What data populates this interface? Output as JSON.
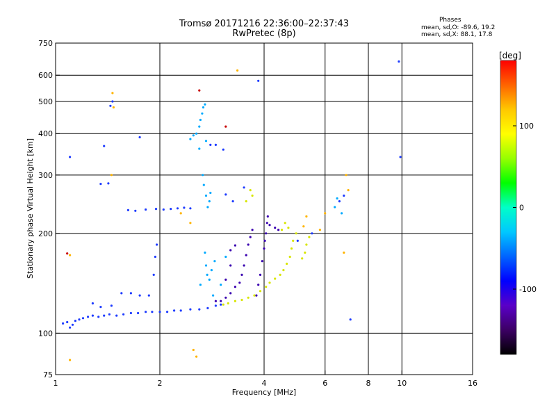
{
  "chart_data": {
    "type": "scatter",
    "title": "Tromsø 20171216 22:36:00–22:37:43",
    "subtitle": "RwPretec (8p)",
    "xlabel": "Frequency [MHz]",
    "ylabel": "Stationary phase Virtual Height [km]",
    "x_scale": "log",
    "y_scale": "log",
    "xlim": [
      1,
      16
    ],
    "ylim": [
      75,
      750
    ],
    "x_ticks": [
      1,
      2,
      4,
      6,
      8,
      10,
      16
    ],
    "y_ticks": [
      75,
      100,
      200,
      300,
      400,
      500,
      600,
      750
    ],
    "x_gridlines": [
      2,
      4,
      6,
      8,
      10
    ],
    "y_gridlines": [
      100,
      200,
      300,
      400,
      500,
      600
    ],
    "grid": true,
    "colorbar": {
      "label": "[deg]",
      "range": [
        -180,
        180
      ],
      "ticks": [
        100,
        0,
        -100
      ],
      "colors": [
        "#000000",
        "#3c0064",
        "#5a00c8",
        "#0000ff",
        "#0064ff",
        "#00c8ff",
        "#00ffc8",
        "#00ff00",
        "#96ff00",
        "#ffff00",
        "#ffc800",
        "#ff6400",
        "#ff0000"
      ]
    },
    "phases_header": "Phases",
    "stats": {
      "O": "mean, sd,O: -89.6, 19.2",
      "X": "mean, sd,X:  88.1, 17.8"
    },
    "series": [
      {
        "color": "#1e3cff",
        "points": [
          [
            1.05,
            107
          ],
          [
            1.08,
            108
          ],
          [
            1.1,
            104
          ],
          [
            1.12,
            106
          ],
          [
            1.14,
            109
          ],
          [
            1.17,
            110
          ],
          [
            1.2,
            111
          ],
          [
            1.24,
            112
          ],
          [
            1.28,
            113
          ],
          [
            1.33,
            112
          ],
          [
            1.38,
            113
          ],
          [
            1.43,
            114
          ],
          [
            1.5,
            113
          ],
          [
            1.57,
            114
          ],
          [
            1.65,
            115
          ],
          [
            1.73,
            115
          ],
          [
            1.82,
            116
          ],
          [
            1.9,
            116
          ],
          [
            2.0,
            116
          ],
          [
            2.1,
            116
          ],
          [
            2.2,
            117
          ],
          [
            2.3,
            117
          ],
          [
            2.45,
            118
          ],
          [
            2.6,
            118
          ],
          [
            2.75,
            119
          ],
          [
            2.9,
            121
          ],
          [
            3.0,
            122
          ],
          [
            1.28,
            123
          ],
          [
            1.35,
            120
          ],
          [
            1.45,
            121
          ],
          [
            1.55,
            132
          ],
          [
            1.65,
            132
          ],
          [
            1.75,
            130
          ],
          [
            1.86,
            130
          ],
          [
            1.92,
            150
          ],
          [
            1.94,
            170
          ],
          [
            1.96,
            185
          ],
          [
            1.62,
            235
          ],
          [
            1.7,
            234
          ],
          [
            1.82,
            236
          ],
          [
            1.95,
            237
          ],
          [
            2.05,
            236
          ],
          [
            2.15,
            237
          ],
          [
            2.25,
            238
          ],
          [
            2.35,
            239
          ],
          [
            2.45,
            238
          ],
          [
            1.1,
            340
          ],
          [
            1.38,
            367
          ],
          [
            1.35,
            282
          ],
          [
            1.42,
            283
          ],
          [
            1.46,
            500
          ],
          [
            1.44,
            485
          ],
          [
            1.75,
            390
          ],
          [
            2.8,
            370
          ],
          [
            2.9,
            370
          ],
          [
            3.05,
            358
          ],
          [
            3.1,
            262
          ],
          [
            3.25,
            250
          ],
          [
            3.5,
            275
          ],
          [
            5.5,
            200
          ],
          [
            5.0,
            190
          ],
          [
            3.85,
            577
          ],
          [
            6.6,
            250
          ],
          [
            6.8,
            260
          ],
          [
            7.1,
            110
          ],
          [
            9.8,
            660
          ],
          [
            9.9,
            340
          ]
        ]
      },
      {
        "color": "#00aaff",
        "points": [
          [
            2.45,
            385
          ],
          [
            2.5,
            395
          ],
          [
            2.55,
            400
          ],
          [
            2.6,
            420
          ],
          [
            2.62,
            440
          ],
          [
            2.65,
            460
          ],
          [
            2.67,
            480
          ],
          [
            2.7,
            490
          ],
          [
            2.72,
            380
          ],
          [
            2.6,
            360
          ],
          [
            2.66,
            300
          ],
          [
            2.68,
            280
          ],
          [
            2.72,
            260
          ],
          [
            2.75,
            240
          ],
          [
            2.78,
            250
          ],
          [
            2.8,
            265
          ],
          [
            2.7,
            175
          ],
          [
            2.72,
            160
          ],
          [
            2.74,
            150
          ],
          [
            2.78,
            145
          ],
          [
            2.82,
            155
          ],
          [
            2.88,
            165
          ],
          [
            2.62,
            140
          ],
          [
            2.85,
            130
          ],
          [
            3.0,
            140
          ],
          [
            3.1,
            170
          ],
          [
            6.4,
            240
          ],
          [
            6.5,
            255
          ],
          [
            6.7,
            230
          ]
        ]
      },
      {
        "color": "#3a00b0",
        "points": [
          [
            3.0,
            125
          ],
          [
            3.1,
            128
          ],
          [
            3.2,
            132
          ],
          [
            3.3,
            138
          ],
          [
            3.4,
            142
          ],
          [
            3.45,
            150
          ],
          [
            3.5,
            160
          ],
          [
            3.55,
            172
          ],
          [
            3.6,
            185
          ],
          [
            3.65,
            195
          ],
          [
            3.7,
            205
          ],
          [
            3.8,
            130
          ],
          [
            3.85,
            140
          ],
          [
            3.9,
            150
          ],
          [
            3.95,
            165
          ],
          [
            4.0,
            180
          ],
          [
            4.02,
            190
          ],
          [
            4.05,
            200
          ],
          [
            4.08,
            215
          ],
          [
            4.1,
            225
          ],
          [
            4.15,
            212
          ],
          [
            4.3,
            208
          ],
          [
            4.4,
            205
          ],
          [
            3.2,
            178
          ],
          [
            3.3,
            184
          ],
          [
            3.2,
            160
          ],
          [
            3.1,
            145
          ],
          [
            2.9,
            125
          ]
        ]
      },
      {
        "color": "#d8e600",
        "points": [
          [
            3.05,
            122
          ],
          [
            3.15,
            123
          ],
          [
            3.3,
            125
          ],
          [
            3.45,
            126
          ],
          [
            3.6,
            128
          ],
          [
            3.75,
            130
          ],
          [
            3.9,
            134
          ],
          [
            4.05,
            138
          ],
          [
            4.15,
            142
          ],
          [
            4.3,
            146
          ],
          [
            4.45,
            150
          ],
          [
            4.55,
            155
          ],
          [
            4.65,
            162
          ],
          [
            4.75,
            170
          ],
          [
            4.8,
            180
          ],
          [
            4.85,
            190
          ],
          [
            4.95,
            200
          ],
          [
            4.7,
            208
          ],
          [
            4.6,
            215
          ],
          [
            4.5,
            205
          ],
          [
            5.15,
            168
          ],
          [
            5.25,
            175
          ],
          [
            5.3,
            185
          ],
          [
            5.4,
            195
          ],
          [
            3.7,
            260
          ],
          [
            3.65,
            270
          ],
          [
            3.55,
            250
          ]
        ]
      },
      {
        "color": "#ffb400",
        "points": [
          [
            1.1,
            172
          ],
          [
            1.1,
            83
          ],
          [
            1.46,
            530
          ],
          [
            1.47,
            480
          ],
          [
            1.45,
            300
          ],
          [
            2.3,
            230
          ],
          [
            2.45,
            215
          ],
          [
            2.5,
            89
          ],
          [
            2.55,
            85
          ],
          [
            3.35,
            620
          ],
          [
            5.3,
            225
          ],
          [
            5.2,
            210
          ],
          [
            5.8,
            205
          ],
          [
            6.0,
            230
          ],
          [
            6.9,
            300
          ],
          [
            6.8,
            175
          ],
          [
            7.0,
            270
          ]
        ]
      },
      {
        "color": "#c80000",
        "points": [
          [
            1.08,
            174
          ],
          [
            2.6,
            540
          ],
          [
            3.1,
            420
          ]
        ]
      }
    ]
  }
}
